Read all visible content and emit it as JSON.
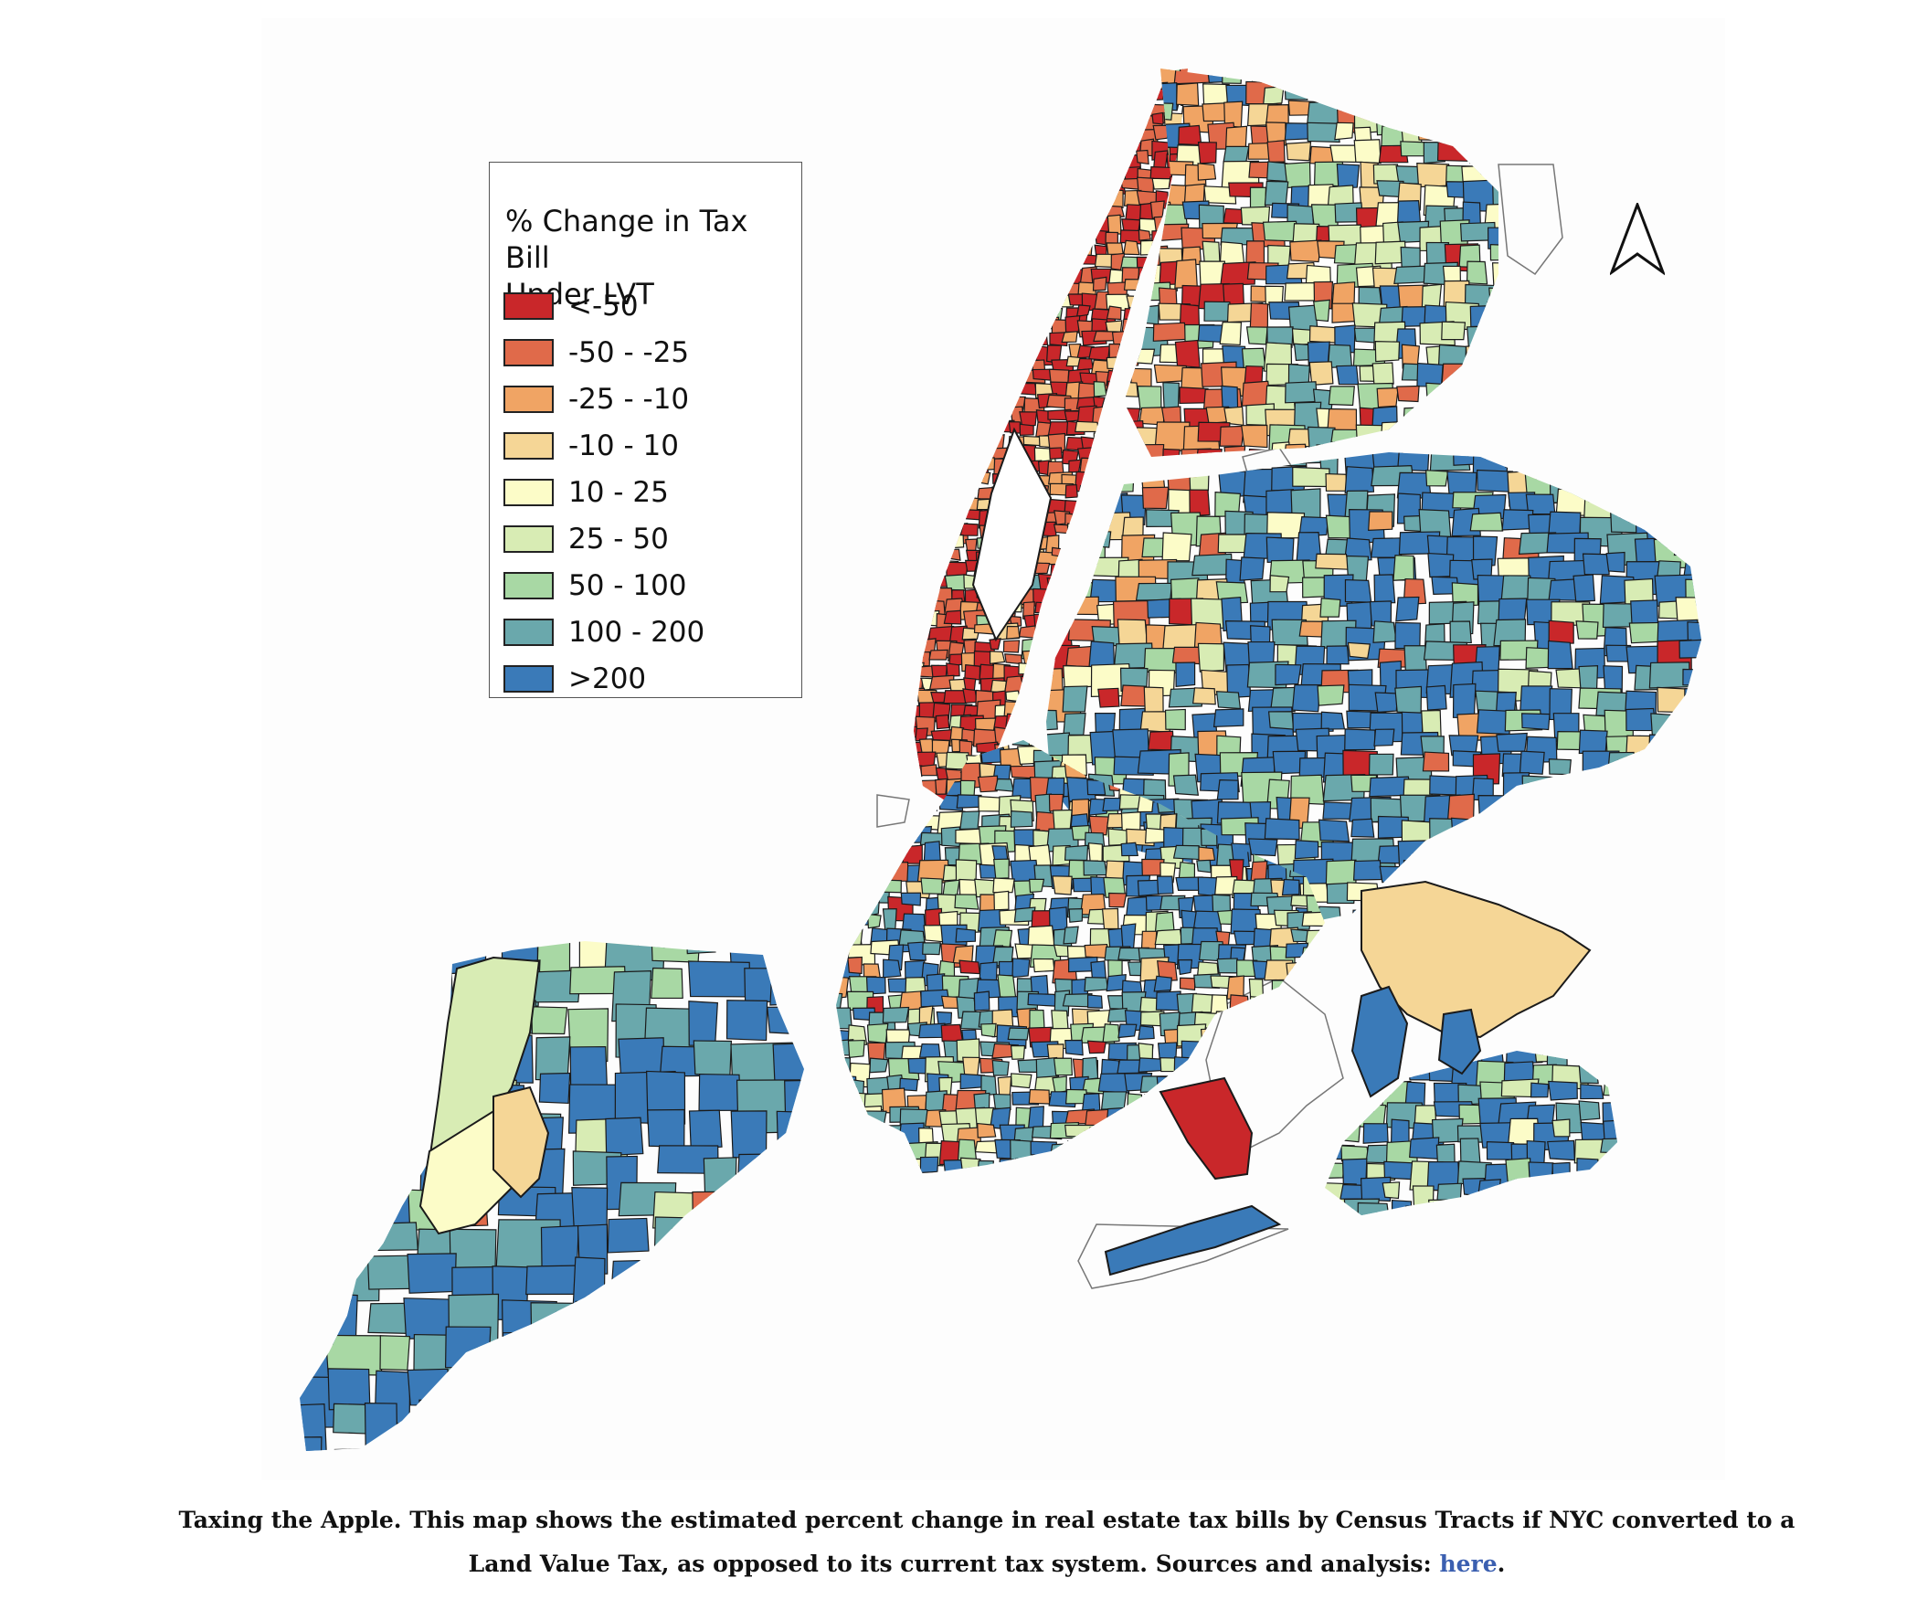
{
  "legend": {
    "title_line1": "% Change in Tax Bill",
    "title_line2": "Under LVT",
    "items": [
      {
        "label": "<-50",
        "color": "#c9272a"
      },
      {
        "label": "-50 - -25",
        "color": "#e06a4a"
      },
      {
        "label": "-25 - -10",
        "color": "#f0a464"
      },
      {
        "label": "-10 - 10",
        "color": "#f5d696"
      },
      {
        "label": "10 - 25",
        "color": "#fcfcc8"
      },
      {
        "label": "25 - 50",
        "color": "#d8ecb4"
      },
      {
        "label": "50 - 100",
        "color": "#a8d8a4"
      },
      {
        "label": "100 - 200",
        "color": "#6aa8ac"
      },
      {
        "label": ">200",
        "color": "#3a7ab8"
      }
    ]
  },
  "north_arrow": {
    "icon": "north-arrow-icon"
  },
  "caption": {
    "text": "Taxing the Apple. This map shows the estimated percent change in real estate tax bills by Census Tracts if NYC converted to a Land Value Tax, as opposed to its current tax system. Sources and analysis: ",
    "link_text": "here",
    "end": "."
  },
  "colors": {
    "link": "#3b5fb0",
    "tract_border": "#1a1a1a",
    "water_outline": "#777777"
  }
}
